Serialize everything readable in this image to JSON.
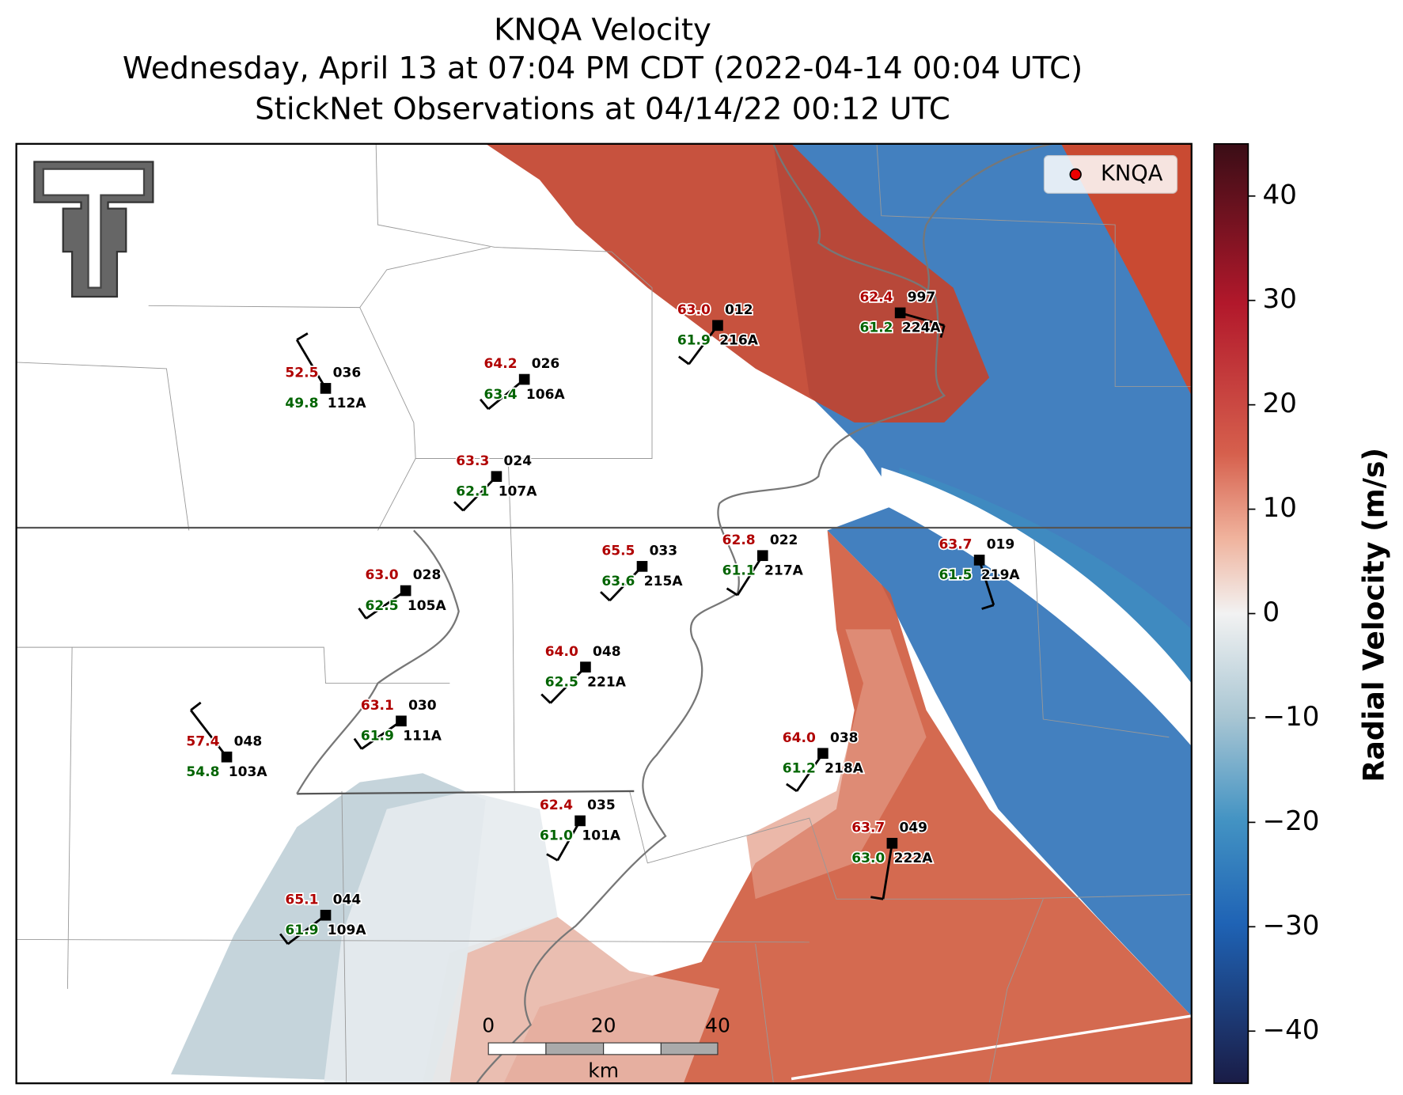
{
  "title": [
    "KNQA Velocity",
    "Wednesday, April 13 at 07:04 PM CDT (2022-04-14 00:04 UTC)",
    "StickNet Observations at 04/14/22 00:12 UTC"
  ],
  "legend": "KNQA",
  "colorbar": {
    "label": "Radial Velocity (m/s)",
    "lim": [
      -45,
      45
    ],
    "ticks": [
      {
        "value": 40,
        "label": "40"
      },
      {
        "value": 30,
        "label": "30"
      },
      {
        "value": 20,
        "label": "20"
      },
      {
        "value": 10,
        "label": "10"
      },
      {
        "value": 0,
        "label": "0"
      },
      {
        "value": -10,
        "label": "−10"
      },
      {
        "value": -20,
        "label": "−20"
      },
      {
        "value": -30,
        "label": "−30"
      },
      {
        "value": -40,
        "label": "−40"
      }
    ]
  },
  "scale_bar": {
    "ticks": [
      "0",
      "20",
      "40"
    ],
    "unit": "km"
  },
  "stations": [
    {
      "temp": "52.5",
      "dew": "49.8",
      "pressure": "036",
      "id": "112A"
    },
    {
      "temp": "64.2",
      "dew": "63.4",
      "pressure": "026",
      "id": "106A"
    },
    {
      "temp": "63.0",
      "dew": "61.9",
      "pressure": "012",
      "id": "216A"
    },
    {
      "temp": "62.4",
      "dew": "61.2",
      "pressure": "997",
      "id": "224A"
    },
    {
      "temp": "63.3",
      "dew": "62.1",
      "pressure": "024",
      "id": "107A"
    },
    {
      "temp": "65.5",
      "dew": "63.6",
      "pressure": "033",
      "id": "215A"
    },
    {
      "temp": "62.8",
      "dew": "61.1",
      "pressure": "022",
      "id": "217A"
    },
    {
      "temp": "63.7",
      "dew": "61.5",
      "pressure": "019",
      "id": "219A"
    },
    {
      "temp": "63.0",
      "dew": "62.5",
      "pressure": "028",
      "id": "105A"
    },
    {
      "temp": "64.0",
      "dew": "62.5",
      "pressure": "048",
      "id": "221A"
    },
    {
      "temp": "63.1",
      "dew": "61.9",
      "pressure": "030",
      "id": "111A"
    },
    {
      "temp": "57.4",
      "dew": "54.8",
      "pressure": "048",
      "id": "103A"
    },
    {
      "temp": "64.0",
      "dew": "61.2",
      "pressure": "038",
      "id": "218A"
    },
    {
      "temp": "62.4",
      "dew": "61.0",
      "pressure": "035",
      "id": "101A"
    },
    {
      "temp": "63.7",
      "dew": "63.0",
      "pressure": "049",
      "id": "222A"
    },
    {
      "temp": "65.1",
      "dew": "61.9",
      "pressure": "044",
      "id": "109A"
    }
  ]
}
